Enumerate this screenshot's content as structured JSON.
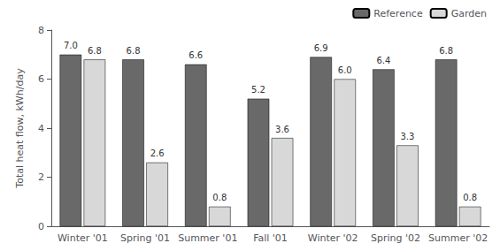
{
  "chart_data": {
    "type": "bar",
    "categories": [
      "Winter '01",
      "Spring '01",
      "Summer '01",
      "Fall '01",
      "Winter '02",
      "Spring '02",
      "Summer '02"
    ],
    "series": [
      {
        "name": "Reference",
        "color": "#696969",
        "values": [
          7.0,
          6.8,
          6.6,
          5.2,
          6.9,
          6.4,
          6.8
        ],
        "value_labels": [
          "7.0",
          "6.8",
          "6.6",
          "5.2",
          "6.9",
          "6.4",
          "6.8"
        ]
      },
      {
        "name": "Garden",
        "color": "#d8d8d8",
        "values": [
          6.8,
          2.6,
          0.8,
          3.6,
          6.0,
          3.3,
          0.8
        ],
        "value_labels": [
          "6.8",
          "2.6",
          "0.8",
          "3.6",
          "6.0",
          "3.3",
          "0.8"
        ]
      }
    ],
    "ylabel": "Total heat flow, kWh/day",
    "ylim": [
      0,
      8
    ],
    "yticks": [
      0,
      2,
      4,
      6,
      8
    ],
    "grid": false,
    "legend": "upper right",
    "data_labels": true
  }
}
